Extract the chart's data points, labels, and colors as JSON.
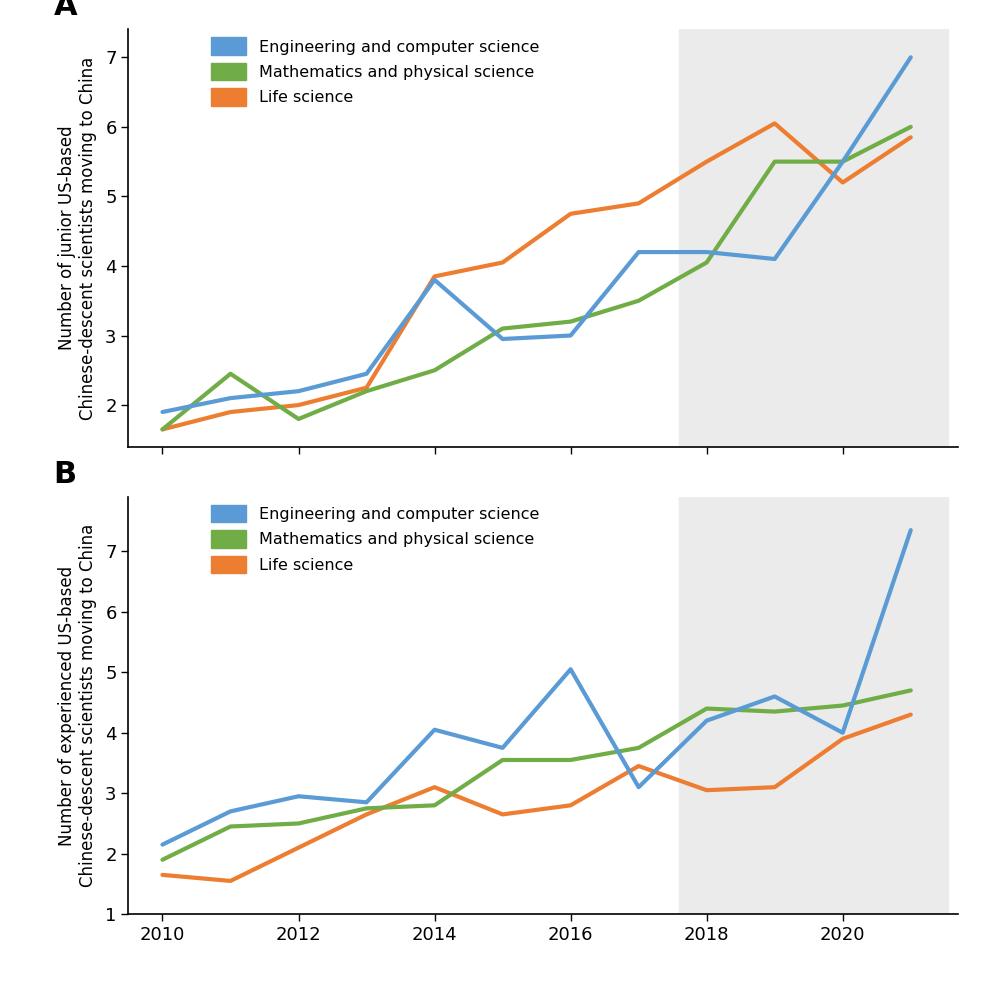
{
  "years_a": [
    2010,
    2011,
    2012,
    2013,
    2014,
    2015,
    2016,
    2017,
    2018,
    2019,
    2020,
    2021
  ],
  "panel_a": {
    "engineering": [
      1.9,
      2.1,
      2.2,
      2.45,
      3.8,
      2.95,
      3.0,
      4.2,
      4.2,
      4.1,
      5.5,
      7.0
    ],
    "math_physics": [
      1.65,
      2.45,
      1.8,
      2.2,
      2.5,
      3.1,
      3.2,
      3.5,
      4.05,
      5.5,
      5.5,
      6.0
    ],
    "life_science": [
      1.65,
      1.9,
      2.0,
      2.25,
      3.85,
      4.05,
      4.75,
      4.9,
      5.5,
      6.05,
      5.2,
      5.85
    ]
  },
  "years_b": [
    2010,
    2011,
    2012,
    2013,
    2014,
    2015,
    2016,
    2017,
    2018,
    2019,
    2020,
    2021
  ],
  "panel_b": {
    "engineering": [
      2.15,
      2.7,
      2.95,
      2.85,
      4.05,
      3.75,
      5.05,
      3.1,
      4.2,
      4.6,
      4.0,
      7.35
    ],
    "math_physics": [
      1.9,
      2.45,
      2.5,
      2.75,
      2.8,
      3.55,
      3.55,
      3.75,
      4.4,
      4.35,
      4.45,
      4.7
    ],
    "life_science": [
      1.65,
      1.55,
      2.1,
      2.65,
      3.1,
      2.65,
      2.8,
      3.45,
      3.05,
      3.1,
      3.9,
      4.3
    ]
  },
  "color_engineering": "#5B9BD5",
  "color_math": "#70AD47",
  "color_life": "#ED7D31",
  "shade_start": 2017.6,
  "shade_end": 2021.55,
  "shade_color": "#EBEBEB",
  "label_engineering": "Engineering and computer science",
  "label_math": "Mathematics and physical science",
  "label_life": "Life science",
  "ylabel_a": "Number of junior US-based\nChinese-descent scientists moving to China",
  "ylabel_b": "Number of experienced US-based\nChinese-descent scientists moving to China",
  "title_a": "A",
  "title_b": "B",
  "line_width": 3.0,
  "xlim": [
    2009.5,
    2021.7
  ],
  "ylim_a": [
    1.4,
    7.4
  ],
  "ylim_b": [
    1.0,
    7.9
  ],
  "yticks_a": [
    2,
    3,
    4,
    5,
    6,
    7
  ],
  "yticks_b": [
    1,
    2,
    3,
    4,
    5,
    6,
    7
  ],
  "xticks": [
    2010,
    2012,
    2014,
    2016,
    2018,
    2020
  ]
}
